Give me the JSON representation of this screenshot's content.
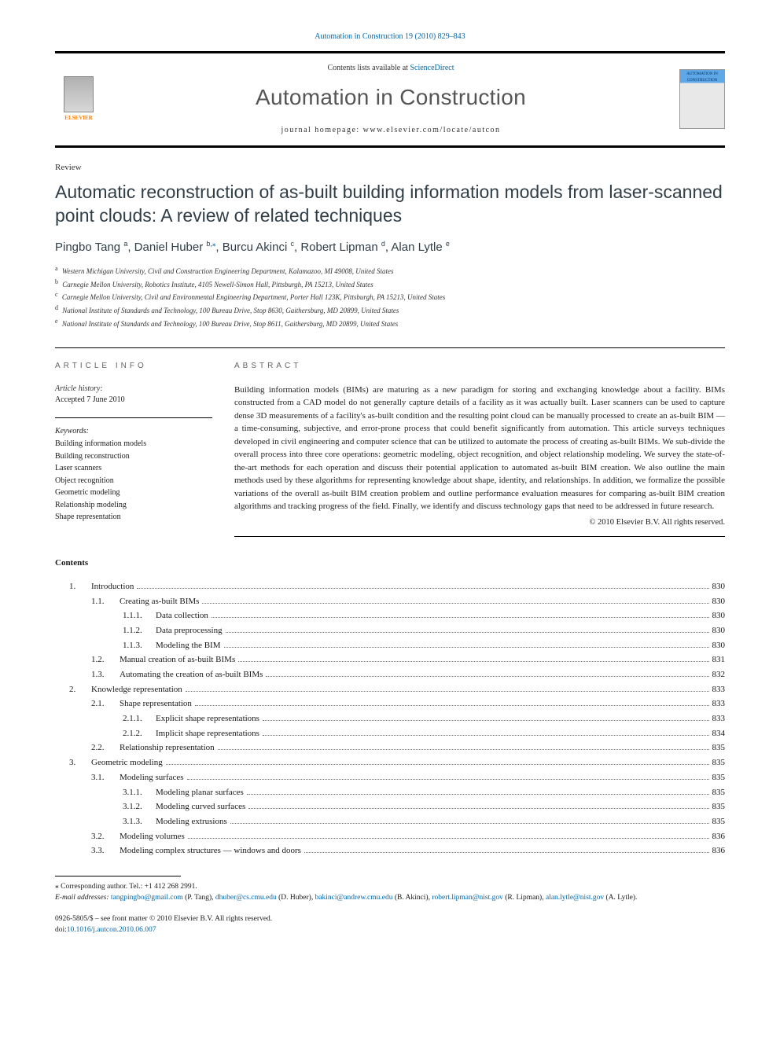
{
  "citation": "Automation in Construction 19 (2010) 829–843",
  "publisher_name": "ELSEVIER",
  "contents_avail_prefix": "Contents lists available at ",
  "contents_avail_link": "ScienceDirect",
  "journal_name": "Automation in Construction",
  "journal_home_prefix": "journal homepage: ",
  "journal_home_url": "www.elsevier.com/locate/autcon",
  "cover_label": "AUTOMATION IN CONSTRUCTION",
  "article_type": "Review",
  "title": "Automatic reconstruction of as-built building information models from laser-scanned point clouds: A review of related techniques",
  "authors": [
    {
      "name": "Pingbo Tang",
      "sup": "a"
    },
    {
      "name": "Daniel Huber",
      "sup": "b,",
      "corr": true
    },
    {
      "name": "Burcu Akinci",
      "sup": "c"
    },
    {
      "name": "Robert Lipman",
      "sup": "d"
    },
    {
      "name": "Alan Lytle",
      "sup": "e"
    }
  ],
  "affiliations": [
    {
      "sup": "a",
      "text": "Western Michigan University, Civil and Construction Engineering Department, Kalamazoo, MI 49008, United States"
    },
    {
      "sup": "b",
      "text": "Carnegie Mellon University, Robotics Institute, 4105 Newell-Simon Hall, Pittsburgh, PA 15213, United States"
    },
    {
      "sup": "c",
      "text": "Carnegie Mellon University, Civil and Environmental Engineering Department, Porter Hall 123K, Pittsburgh, PA 15213, United States"
    },
    {
      "sup": "d",
      "text": "National Institute of Standards and Technology, 100 Bureau Drive, Stop 8630, Gaithersburg, MD 20899, United States"
    },
    {
      "sup": "e",
      "text": "National Institute of Standards and Technology, 100 Bureau Drive, Stop 8611, Gaithersburg, MD 20899, United States"
    }
  ],
  "info_head": "ARTICLE INFO",
  "abstract_head": "ABSTRACT",
  "history_label": "Article history:",
  "history_value": "Accepted 7 June 2010",
  "keywords_label": "Keywords:",
  "keywords": [
    "Building information models",
    "Building reconstruction",
    "Laser scanners",
    "Object recognition",
    "Geometric modeling",
    "Relationship modeling",
    "Shape representation"
  ],
  "abstract": "Building information models (BIMs) are maturing as a new paradigm for storing and exchanging knowledge about a facility. BIMs constructed from a CAD model do not generally capture details of a facility as it was actually built. Laser scanners can be used to capture dense 3D measurements of a facility's as-built condition and the resulting point cloud can be manually processed to create an as-built BIM — a time-consuming, subjective, and error-prone process that could benefit significantly from automation. This article surveys techniques developed in civil engineering and computer science that can be utilized to automate the process of creating as-built BIMs. We sub-divide the overall process into three core operations: geometric modeling, object recognition, and object relationship modeling. We survey the state-of-the-art methods for each operation and discuss their potential application to automated as-built BIM creation. We also outline the main methods used by these algorithms for representing knowledge about shape, identity, and relationships. In addition, we formalize the possible variations of the overall as-built BIM creation problem and outline performance evaluation measures for comparing as-built BIM creation algorithms and tracking progress of the field. Finally, we identify and discuss technology gaps that need to be addressed in future research.",
  "copyright": "© 2010 Elsevier B.V. All rights reserved.",
  "contents_head": "Contents",
  "toc": [
    {
      "level": 1,
      "num": "1.",
      "title": "Introduction",
      "page": "830"
    },
    {
      "level": 2,
      "num": "1.1.",
      "title": "Creating as-built BIMs",
      "page": "830"
    },
    {
      "level": 3,
      "num": "1.1.1.",
      "title": "Data collection",
      "page": "830"
    },
    {
      "level": 3,
      "num": "1.1.2.",
      "title": "Data preprocessing",
      "page": "830"
    },
    {
      "level": 3,
      "num": "1.1.3.",
      "title": "Modeling the BIM",
      "page": "830"
    },
    {
      "level": 2,
      "num": "1.2.",
      "title": "Manual creation of as-built BIMs",
      "page": "831"
    },
    {
      "level": 2,
      "num": "1.3.",
      "title": "Automating the creation of as-built BIMs",
      "page": "832"
    },
    {
      "level": 1,
      "num": "2.",
      "title": "Knowledge representation",
      "page": "833"
    },
    {
      "level": 2,
      "num": "2.1.",
      "title": "Shape representation",
      "page": "833"
    },
    {
      "level": 3,
      "num": "2.1.1.",
      "title": "Explicit shape representations",
      "page": "833"
    },
    {
      "level": 3,
      "num": "2.1.2.",
      "title": "Implicit shape representations",
      "page": "834"
    },
    {
      "level": 2,
      "num": "2.2.",
      "title": "Relationship representation",
      "page": "835"
    },
    {
      "level": 1,
      "num": "3.",
      "title": "Geometric modeling",
      "page": "835"
    },
    {
      "level": 2,
      "num": "3.1.",
      "title": "Modeling surfaces",
      "page": "835"
    },
    {
      "level": 3,
      "num": "3.1.1.",
      "title": "Modeling planar surfaces",
      "page": "835"
    },
    {
      "level": 3,
      "num": "3.1.2.",
      "title": "Modeling curved surfaces",
      "page": "835"
    },
    {
      "level": 3,
      "num": "3.1.3.",
      "title": "Modeling extrusions",
      "page": "835"
    },
    {
      "level": 2,
      "num": "3.2.",
      "title": "Modeling volumes",
      "page": "836"
    },
    {
      "level": 2,
      "num": "3.3.",
      "title": "Modeling complex structures — windows and doors",
      "page": "836"
    }
  ],
  "corr_note_sym": "⁎",
  "corr_note": "Corresponding author. Tel.: +1 412 268 2991.",
  "email_label": "E-mail addresses:",
  "emails": [
    {
      "addr": "tangpingbo@gmail.com",
      "who": "(P. Tang)"
    },
    {
      "addr": "dhuber@cs.cmu.edu",
      "who": "(D. Huber)"
    },
    {
      "addr": "bakinci@andrew.cmu.edu",
      "who": "(B. Akinci)"
    },
    {
      "addr": "robert.lipman@nist.gov",
      "who": "(R. Lipman)"
    },
    {
      "addr": "alan.lytle@nist.gov",
      "who": "(A. Lytle)."
    }
  ],
  "issn_line": "0926-5805/$ – see front matter © 2010 Elsevier B.V. All rights reserved.",
  "doi_prefix": "doi:",
  "doi": "10.1016/j.autcon.2010.06.007",
  "colors": {
    "link": "#0066aa",
    "heading": "#303e48",
    "rule": "#000000",
    "body": "#1a1a1a",
    "orange": "#ff7f00"
  },
  "fonts": {
    "body_family": "Georgia / Times",
    "heading_family": "Helvetica Neue / Arial",
    "title_size_pt": 17,
    "journal_size_pt": 21,
    "body_size_pt": 8,
    "author_size_pt": 11
  }
}
